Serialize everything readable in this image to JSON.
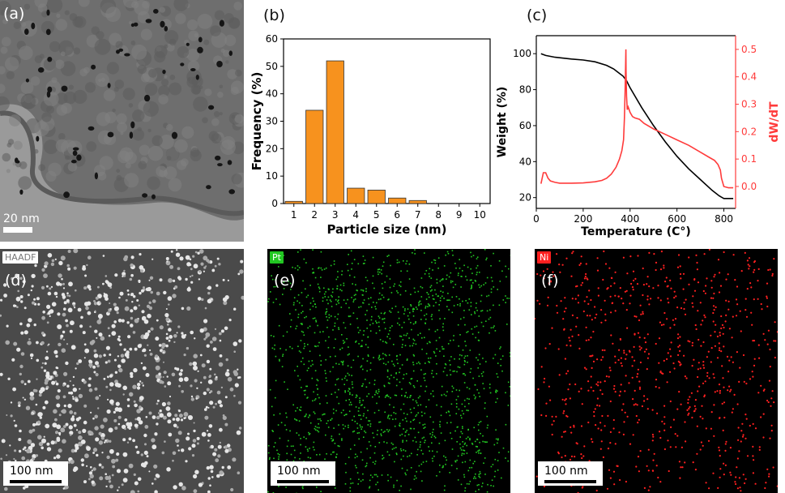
{
  "panels": {
    "a": {
      "label": "(a)",
      "scalebar": "20 nm"
    },
    "b": {
      "label": "(b)"
    },
    "c": {
      "label": "(c)"
    },
    "d": {
      "label": "(d)",
      "tag": "HAADF",
      "scalebar": "100 nm"
    },
    "e": {
      "label": "(e)",
      "tag": "Pt",
      "scalebar": "100 nm"
    },
    "f": {
      "label": "(f)",
      "tag": "Ni",
      "scalebar": "100 nm"
    }
  },
  "colors": {
    "bar": "#F7921E",
    "tga": "#000000",
    "dtg": "#FF3B3B",
    "pt_map": "#22C722",
    "ni_map": "#FF2020"
  },
  "chart_data": [
    {
      "type": "bar",
      "panel": "b",
      "categories": [
        "1",
        "2",
        "3",
        "4",
        "5",
        "6",
        "7",
        "8",
        "9",
        "10"
      ],
      "values": [
        0.8,
        34,
        52,
        5.6,
        4.9,
        2.0,
        1.1,
        0,
        0,
        0
      ],
      "xlabel": "Particle size (nm)",
      "ylabel": "Frequency (%)",
      "ylim": [
        0,
        60
      ],
      "yticks": [
        "0",
        "10",
        "20",
        "30",
        "40",
        "50",
        "60"
      ]
    },
    {
      "type": "line",
      "panel": "c",
      "xlabel": "Temperature (C°)",
      "ylabel": "Weight (%)",
      "y2label": "dW/dT",
      "xlim": [
        0,
        850
      ],
      "ylim": [
        14,
        110
      ],
      "y2lim": [
        -0.08,
        0.55
      ],
      "xticks": [
        "0",
        "200",
        "400",
        "600",
        "800"
      ],
      "yticks": [
        "20",
        "40",
        "60",
        "80",
        "100"
      ],
      "y2ticks": [
        "0.0",
        "0.1",
        "0.2",
        "0.3",
        "0.4",
        "0.5"
      ],
      "series": [
        {
          "axis": "left",
          "color": "#000000",
          "x": [
            20,
            40,
            80,
            150,
            200,
            250,
            300,
            330,
            350,
            370,
            385,
            400,
            450,
            500,
            550,
            600,
            650,
            700,
            750,
            780,
            800,
            820,
            840
          ],
          "y": [
            100,
            99,
            98,
            97,
            96.5,
            95.5,
            93.5,
            91.5,
            89.5,
            87.5,
            85,
            81,
            70,
            60,
            51,
            43,
            36,
            30,
            24,
            21,
            19.5,
            19.5,
            19.5
          ]
        },
        {
          "axis": "right",
          "color": "#FF3B3B",
          "x": [
            20,
            30,
            40,
            50,
            60,
            80,
            100,
            150,
            200,
            250,
            280,
            300,
            320,
            340,
            355,
            365,
            372,
            376,
            379,
            381,
            382,
            383,
            385,
            388,
            392,
            400,
            410,
            420,
            440,
            460,
            500,
            550,
            600,
            650,
            700,
            740,
            760,
            775,
            785,
            790,
            800,
            820,
            840
          ],
          "y": [
            0.01,
            0.05,
            0.05,
            0.03,
            0.02,
            0.015,
            0.012,
            0.012,
            0.013,
            0.017,
            0.022,
            0.03,
            0.045,
            0.07,
            0.1,
            0.13,
            0.17,
            0.25,
            0.36,
            0.45,
            0.5,
            0.42,
            0.33,
            0.28,
            0.29,
            0.27,
            0.255,
            0.25,
            0.245,
            0.23,
            0.21,
            0.19,
            0.17,
            0.15,
            0.125,
            0.105,
            0.095,
            0.08,
            0.06,
            0.03,
            0.0,
            -0.005,
            -0.005
          ]
        }
      ]
    }
  ]
}
